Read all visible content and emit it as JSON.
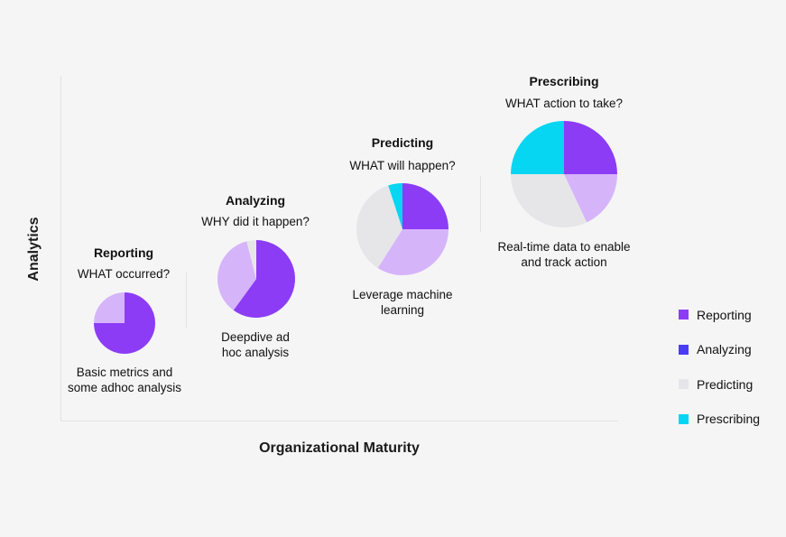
{
  "chart_data": {
    "type": "pie",
    "xlabel": "Organizational Maturity",
    "ylabel": "Analytics",
    "legend_position": "right",
    "categories": [
      "Reporting",
      "Analyzing",
      "Predicting",
      "Prescribing"
    ],
    "legend": [
      {
        "label": "Reporting",
        "color": "#8c3cf5"
      },
      {
        "label": "Analyzing",
        "color": "#4a3cf5"
      },
      {
        "label": "Predicting",
        "color": "#e6e6e8"
      },
      {
        "label": "Prescribing",
        "color": "#06d6f2"
      }
    ],
    "stages": [
      {
        "title": "Reporting",
        "question": "WHAT occurred?",
        "description": "Basic metrics and some adhoc analysis",
        "slices": [
          {
            "label": "Reporting",
            "value": 75,
            "color": "#8c3cf5"
          },
          {
            "label": "Light purple",
            "value": 25,
            "color": "#d6b4fa"
          }
        ]
      },
      {
        "title": "Analyzing",
        "question": "WHY did it happen?",
        "description": "Deepdive ad hoc analysis",
        "slices": [
          {
            "label": "Reporting",
            "value": 60,
            "color": "#8c3cf5"
          },
          {
            "label": "Light purple",
            "value": 36,
            "color": "#d6b4fa"
          },
          {
            "label": "Predicting",
            "value": 4,
            "color": "#e6e6e8"
          }
        ]
      },
      {
        "title": "Predicting",
        "question": "WHAT will happen?",
        "description": "Leverage machine learning",
        "slices": [
          {
            "label": "Reporting",
            "value": 25,
            "color": "#8c3cf5"
          },
          {
            "label": "Light purple",
            "value": 34,
            "color": "#d6b4fa"
          },
          {
            "label": "Predicting",
            "value": 36,
            "color": "#e6e6e8"
          },
          {
            "label": "Prescribing",
            "value": 5,
            "color": "#06d6f2"
          }
        ]
      },
      {
        "title": "Prescribing",
        "question": "WHAT action to take?",
        "description": "Real-time data to enable and track action",
        "slices": [
          {
            "label": "Reporting",
            "value": 25,
            "color": "#8c3cf5"
          },
          {
            "label": "Light purple",
            "value": 18,
            "color": "#d6b4fa"
          },
          {
            "label": "Predicting",
            "value": 32,
            "color": "#e6e6e8"
          },
          {
            "label": "Prescribing",
            "value": 25,
            "color": "#06d6f2"
          }
        ]
      }
    ]
  }
}
